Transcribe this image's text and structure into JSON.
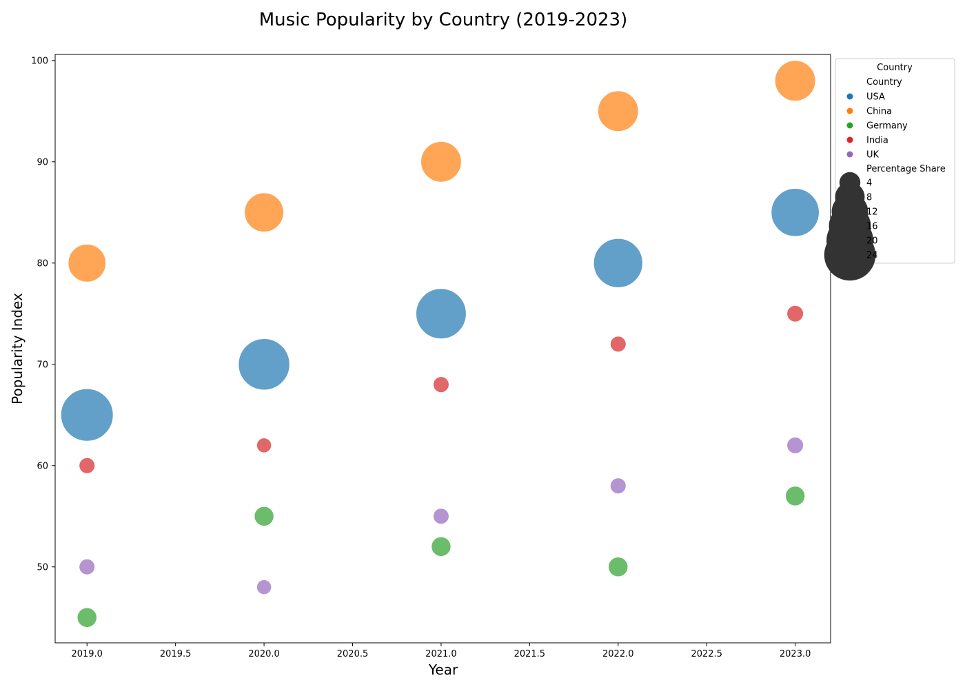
{
  "chart_data": {
    "type": "scatter",
    "title": "Music Popularity by Country (2019-2023)",
    "xlabel": "Year",
    "ylabel": "Popularity Index",
    "xlim": [
      2018.82,
      2023.2
    ],
    "ylim": [
      42.5,
      100.6
    ],
    "x_ticks": [
      "2019.0",
      "2019.5",
      "2020.0",
      "2020.5",
      "2021.0",
      "2021.5",
      "2022.0",
      "2022.5",
      "2023.0"
    ],
    "y_ticks": [
      "50",
      "60",
      "70",
      "80",
      "90",
      "100"
    ],
    "grid": false,
    "size_variable": "Percentage Share",
    "series": [
      {
        "name": "USA",
        "color": "#1f77b4",
        "points": [
          {
            "x": 2019,
            "y": 65,
            "size": 25
          },
          {
            "x": 2020,
            "y": 70,
            "size": 24
          },
          {
            "x": 2021,
            "y": 75,
            "size": 23
          },
          {
            "x": 2022,
            "y": 80,
            "size": 22
          },
          {
            "x": 2023,
            "y": 85,
            "size": 21
          }
        ]
      },
      {
        "name": "China",
        "color": "#ff7f0e",
        "points": [
          {
            "x": 2019,
            "y": 80,
            "size": 13
          },
          {
            "x": 2020,
            "y": 85,
            "size": 14
          },
          {
            "x": 2021,
            "y": 90,
            "size": 15
          },
          {
            "x": 2022,
            "y": 95,
            "size": 15
          },
          {
            "x": 2023,
            "y": 98,
            "size": 15
          }
        ]
      },
      {
        "name": "Germany",
        "color": "#2ca02c",
        "points": [
          {
            "x": 2019,
            "y": 45,
            "size": 3.5
          },
          {
            "x": 2020,
            "y": 55,
            "size": 3.5
          },
          {
            "x": 2021,
            "y": 52,
            "size": 3.5
          },
          {
            "x": 2022,
            "y": 50,
            "size": 3.5
          },
          {
            "x": 2023,
            "y": 57,
            "size": 3.5
          }
        ]
      },
      {
        "name": "India",
        "color": "#d62728",
        "points": [
          {
            "x": 2019,
            "y": 60,
            "size": 2.3
          },
          {
            "x": 2020,
            "y": 62,
            "size": 2
          },
          {
            "x": 2021,
            "y": 68,
            "size": 2.3
          },
          {
            "x": 2022,
            "y": 72,
            "size": 2.3
          },
          {
            "x": 2023,
            "y": 75,
            "size": 2.5
          }
        ]
      },
      {
        "name": "UK",
        "color": "#9467bd",
        "points": [
          {
            "x": 2019,
            "y": 50,
            "size": 2.3
          },
          {
            "x": 2020,
            "y": 48,
            "size": 2
          },
          {
            "x": 2021,
            "y": 55,
            "size": 2.3
          },
          {
            "x": 2022,
            "y": 58,
            "size": 2.3
          },
          {
            "x": 2023,
            "y": 62,
            "size": 2.5
          }
        ]
      }
    ],
    "legend": {
      "placement": "outside-upper-right",
      "title": "Country",
      "hue_heading": "Country",
      "size_heading": "Percentage Share",
      "size_entries": [
        "4",
        "8",
        "12",
        "16",
        "20",
        "24"
      ]
    }
  }
}
